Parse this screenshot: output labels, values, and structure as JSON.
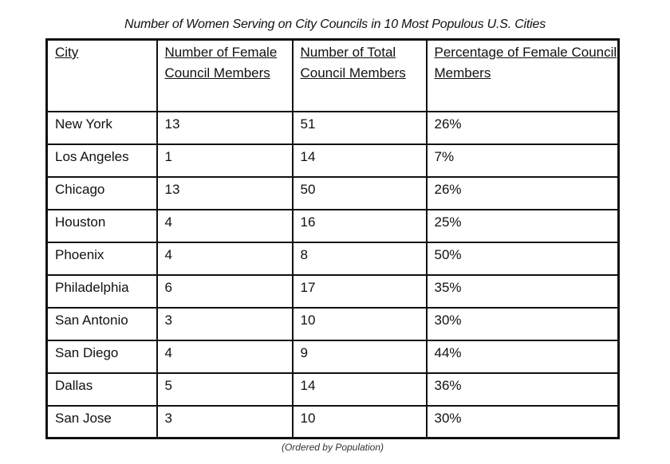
{
  "title": "Number of Women Serving on City Councils in 10 Most Populous U.S. Cities",
  "table": {
    "headers": [
      "City",
      "Number of Female Council Members",
      "Number of Total Council Members",
      "Percentage of Female Council Members"
    ],
    "rows": [
      [
        "New York",
        "13",
        "51",
        "26%"
      ],
      [
        "Los Angeles",
        "1",
        "14",
        "7%"
      ],
      [
        "Chicago",
        "13",
        "50",
        "26%"
      ],
      [
        "Houston",
        "4",
        "16",
        "25%"
      ],
      [
        "Phoenix",
        "4",
        "8",
        "50%"
      ],
      [
        "Philadelphia",
        "6",
        "17",
        "35%"
      ],
      [
        "San Antonio",
        "3",
        "10",
        "30%"
      ],
      [
        "San Diego",
        "4",
        "9",
        "44%"
      ],
      [
        "Dallas",
        "5",
        "14",
        "36%"
      ],
      [
        "San Jose",
        "3",
        "10",
        "30%"
      ]
    ]
  },
  "footnote": "(Ordered by Population)"
}
